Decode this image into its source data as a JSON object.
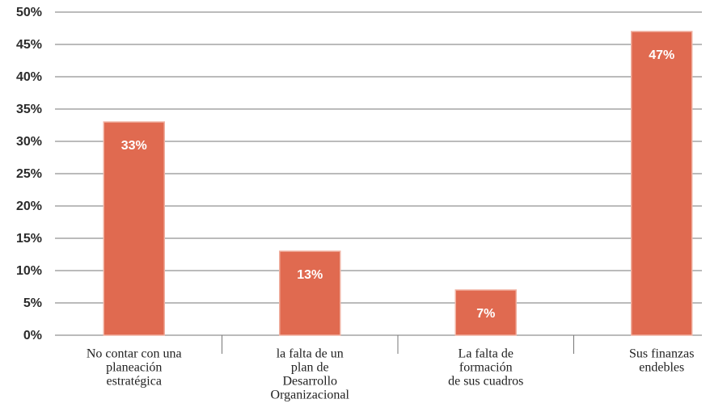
{
  "chart_data": {
    "type": "bar",
    "categories": [
      [
        "No contar con una",
        "planeación",
        "estratégica"
      ],
      [
        "la falta de un",
        "plan de",
        "Desarrollo",
        "Organizacional"
      ],
      [
        "La falta de",
        "formación",
        "de sus cuadros"
      ],
      [
        "Sus finanzas",
        "endebles"
      ]
    ],
    "values": [
      33,
      13,
      7,
      47
    ],
    "value_labels": [
      "33%",
      "13%",
      "7%",
      "47%"
    ],
    "color": "#e06a50",
    "ylim": [
      0,
      50
    ],
    "yticks": [
      {
        "value": 0,
        "label": "0%"
      },
      {
        "value": 5,
        "label": "5%"
      },
      {
        "value": 10,
        "label": "10%"
      },
      {
        "value": 15,
        "label": "15%"
      },
      {
        "value": 20,
        "label": "20%"
      },
      {
        "value": 25,
        "label": "25%"
      },
      {
        "value": 30,
        "label": "30%"
      },
      {
        "value": 35,
        "label": "35%"
      },
      {
        "value": 40,
        "label": "40%"
      },
      {
        "value": 45,
        "label": "45%"
      },
      {
        "value": 50,
        "label": "50%"
      }
    ],
    "grid": true
  }
}
